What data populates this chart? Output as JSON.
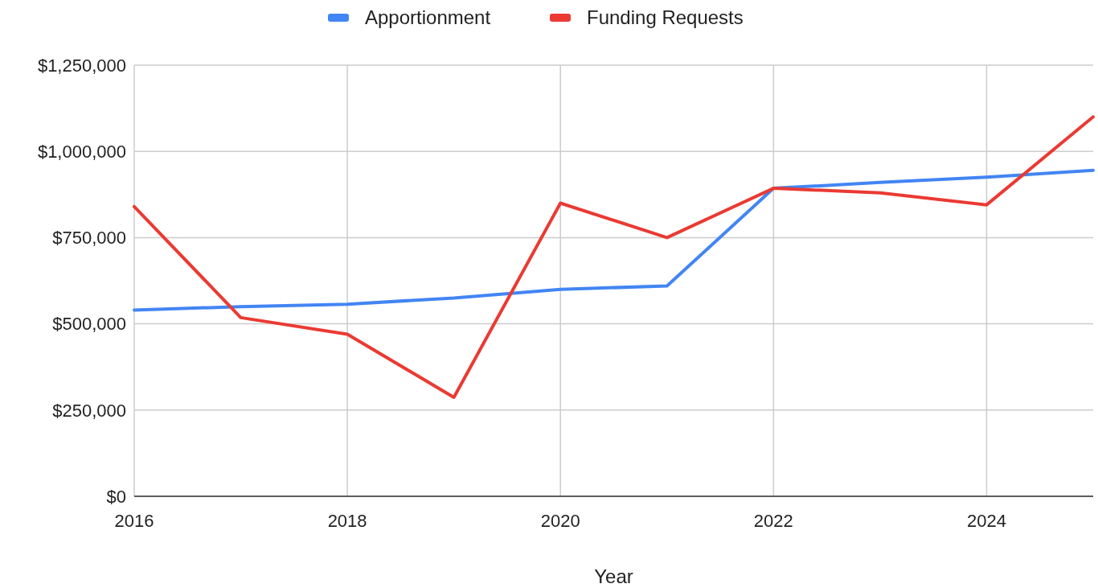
{
  "chart_data": {
    "type": "line",
    "xlabel": "Year",
    "x": [
      2016,
      2017,
      2018,
      2019,
      2020,
      2021,
      2022,
      2023,
      2024,
      2025
    ],
    "series": [
      {
        "name": "Apportionment",
        "color": "#4285f4",
        "values": [
          540000,
          550000,
          557000,
          575000,
          600000,
          610000,
          893000,
          910000,
          925000,
          945000
        ]
      },
      {
        "name": "Funding Requests",
        "color": "#ea3a33",
        "values": [
          840000,
          518000,
          470000,
          287000,
          850000,
          750000,
          893000,
          880000,
          845000,
          1100000
        ]
      }
    ],
    "xlim": [
      2016,
      2025
    ],
    "xticks": [
      2016,
      2018,
      2020,
      2022,
      2024
    ],
    "ylim": [
      0,
      1250000
    ],
    "yticks": [
      {
        "value": 0,
        "label": "$0"
      },
      {
        "value": 250000,
        "label": "$250,000"
      },
      {
        "value": 500000,
        "label": "$500,000"
      },
      {
        "value": 750000,
        "label": "$750,000"
      },
      {
        "value": 1000000,
        "label": "$1,000,000"
      },
      {
        "value": 1250000,
        "label": "$1,250,000"
      }
    ],
    "grid": true,
    "legend": "top",
    "marker": "none",
    "line_style": "solid"
  }
}
